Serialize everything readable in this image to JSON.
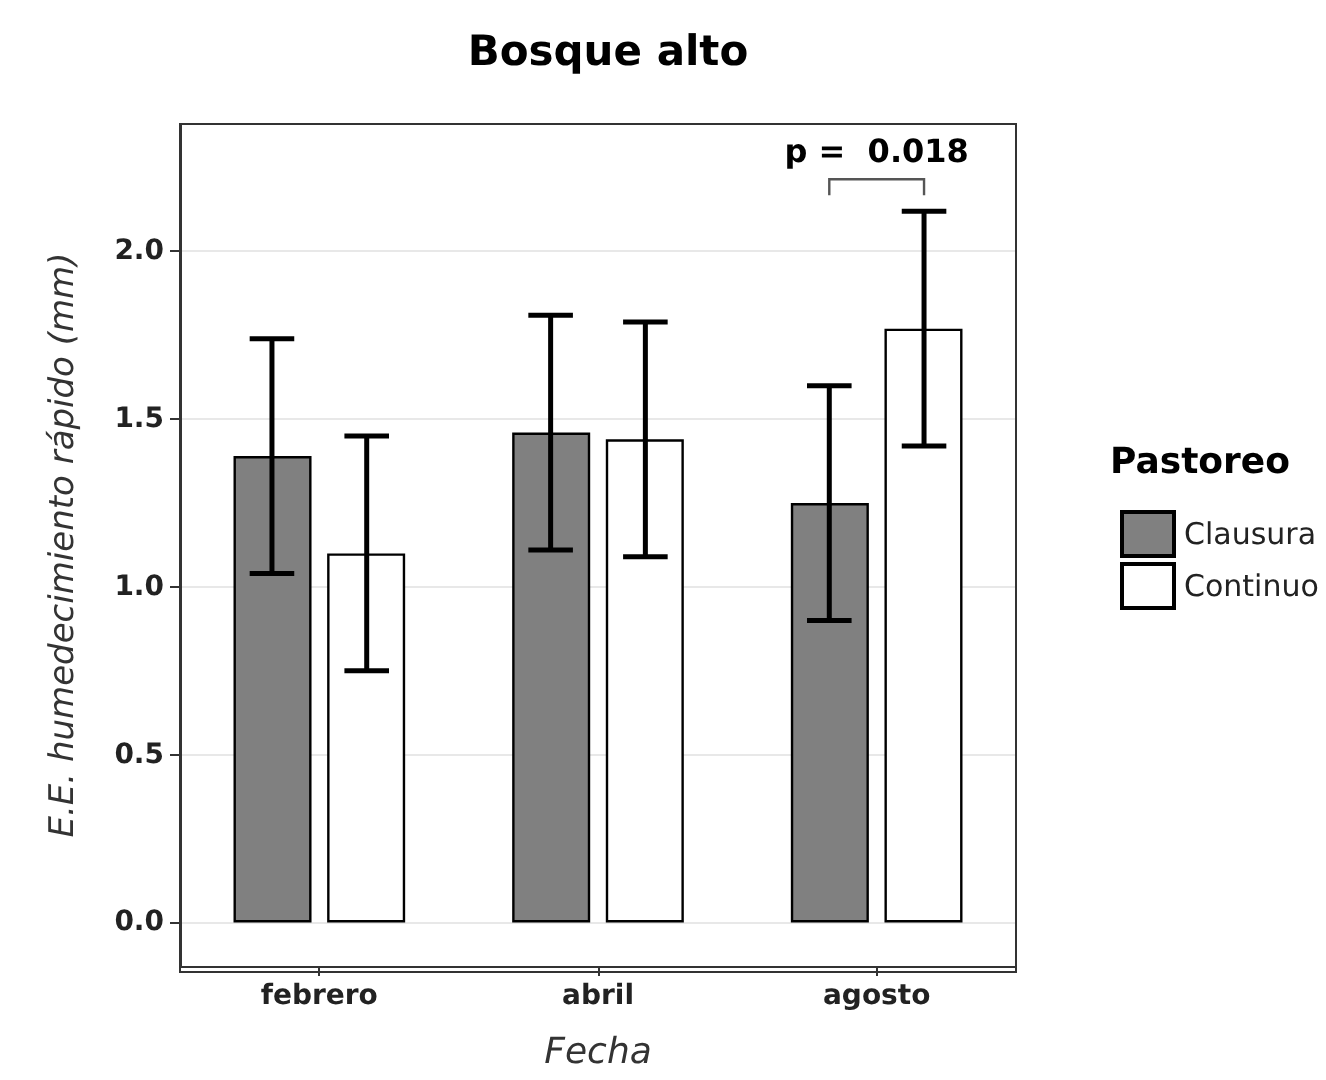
{
  "chart_data": {
    "type": "bar",
    "title": "Bosque alto",
    "xlabel": "Fecha",
    "ylabel": "E.E. humedecimiento rápido (mm)",
    "legend_title": "Pastoreo",
    "categories": [
      "febrero",
      "abril",
      "agosto"
    ],
    "series": [
      {
        "name": "Clausura",
        "color": "#808080",
        "values": [
          1.39,
          1.46,
          1.25
        ],
        "errors": [
          0.35,
          0.35,
          0.35
        ]
      },
      {
        "name": "Continuo",
        "color": "#ffffff",
        "values": [
          1.1,
          1.44,
          1.77
        ],
        "errors": [
          0.35,
          0.35,
          0.35
        ]
      }
    ],
    "ylim": [
      -0.13,
      2.38
    ],
    "yticks": [
      {
        "value": 0,
        "label": "0.0"
      },
      {
        "value": 0.5,
        "label": "0.5"
      },
      {
        "value": 1,
        "label": "1.0"
      },
      {
        "value": 1.5,
        "label": "1.5"
      },
      {
        "value": 2,
        "label": "2.0"
      }
    ],
    "annotations": [
      "p =  0.018"
    ],
    "grid": "y",
    "legend": "right"
  }
}
